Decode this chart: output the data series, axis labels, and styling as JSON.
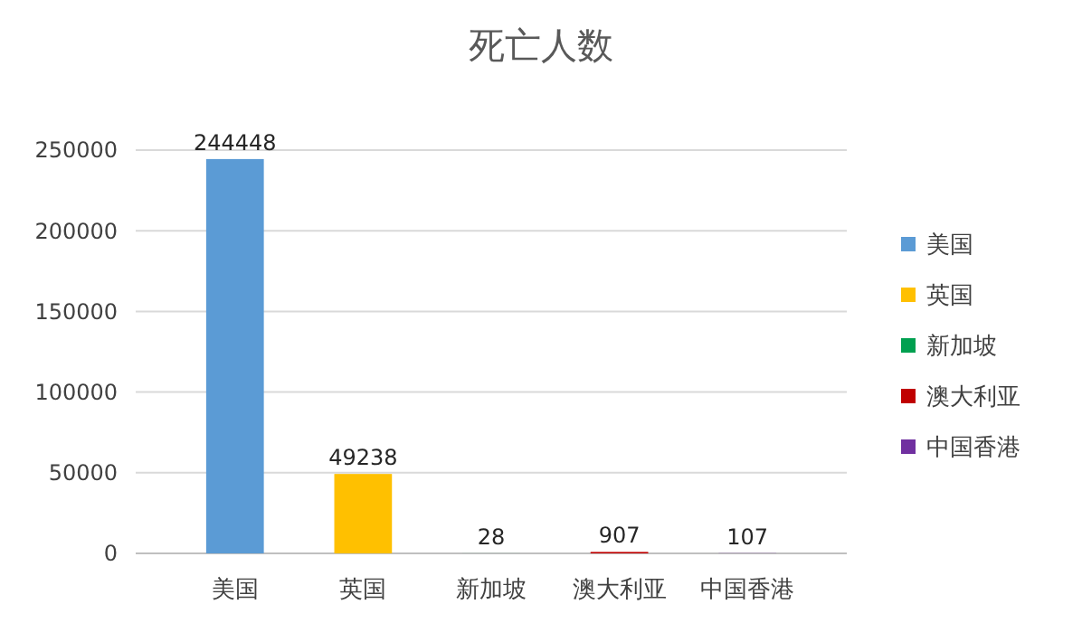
{
  "chart_data": {
    "type": "bar",
    "title": "死亡人数",
    "categories": [
      "美国",
      "英国",
      "新加坡",
      "澳大利亚",
      "中国香港"
    ],
    "series": [
      {
        "name": "美国",
        "color": "#5b9bd5",
        "values": [
          244448,
          null,
          null,
          null,
          null
        ]
      },
      {
        "name": "英国",
        "color": "#ffc000",
        "values": [
          null,
          49238,
          null,
          null,
          null
        ]
      },
      {
        "name": "新加坡",
        "color": "#00a050",
        "values": [
          null,
          null,
          28,
          null,
          null
        ]
      },
      {
        "name": "澳大利亚",
        "color": "#c00000",
        "values": [
          null,
          null,
          null,
          907,
          null
        ]
      },
      {
        "name": "中国香港",
        "color": "#7030a0",
        "values": [
          null,
          null,
          null,
          null,
          107
        ]
      }
    ],
    "ylim": [
      0,
      250000
    ],
    "yticks": [
      0,
      50000,
      100000,
      150000,
      200000,
      250000
    ],
    "grid": "y",
    "data_labels": true,
    "legend": "right"
  }
}
